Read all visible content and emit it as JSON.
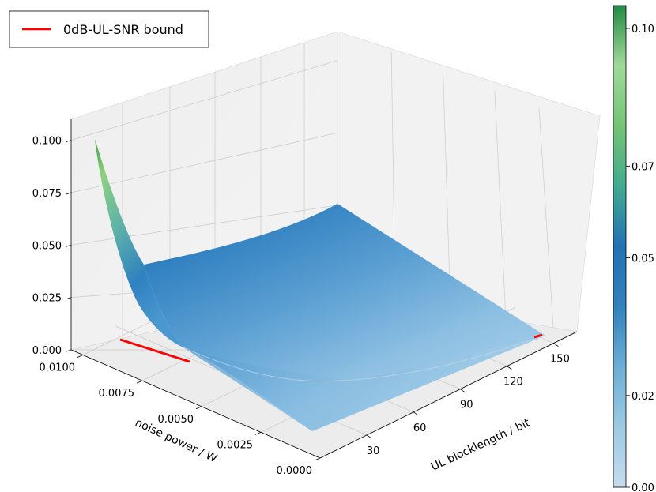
{
  "legend": {
    "label": "0dB-UL-SNR bound",
    "color": "#ff0000"
  },
  "colormap": {
    "stops": [
      "#c6dbef",
      "#9ecae1",
      "#6baed6",
      "#3182bd",
      "#2171b5",
      "#41ab8f",
      "#74c476",
      "#a1d99b",
      "#238b45"
    ]
  },
  "chart_data": {
    "type": "surface3d",
    "x_axis": {
      "label": "UL blocklength / bit",
      "ticks": [
        "30",
        "60",
        "90",
        "120",
        "150"
      ],
      "range": [
        0,
        165
      ]
    },
    "y_axis": {
      "label": "noise power / W",
      "ticks": [
        "0.0000",
        "0.0025",
        "0.0050",
        "0.0075",
        "0.0100"
      ],
      "range": [
        0,
        0.0105
      ]
    },
    "z_axis": {
      "label": "",
      "ticks": [
        "0.000",
        "0.025",
        "0.050",
        "0.075",
        "0.100"
      ],
      "range": [
        0,
        0.11
      ]
    },
    "colorbar": {
      "ticks": [
        "0.00",
        "0.02",
        "0.05",
        "0.07",
        "0.10"
      ],
      "range": [
        0,
        0.105
      ]
    },
    "surface_samples": [
      {
        "x": 0,
        "y": 0.0105,
        "z": 0.108
      },
      {
        "x": 0,
        "y": 0.008,
        "z": 0.028
      },
      {
        "x": 0,
        "y": 0.0,
        "z": 0.0
      },
      {
        "x": 165,
        "y": 0.0105,
        "z": 0.051
      },
      {
        "x": 165,
        "y": 0.0,
        "z": 0.0
      }
    ],
    "series": [
      {
        "name": "0dB-UL-SNR bound",
        "points": [
          {
            "x": 0,
            "y": 0.0105,
            "z": 0
          },
          {
            "x": 165,
            "y": 0.0,
            "z": 0
          }
        ]
      }
    ],
    "grid": true,
    "legend_position": "top-left"
  }
}
